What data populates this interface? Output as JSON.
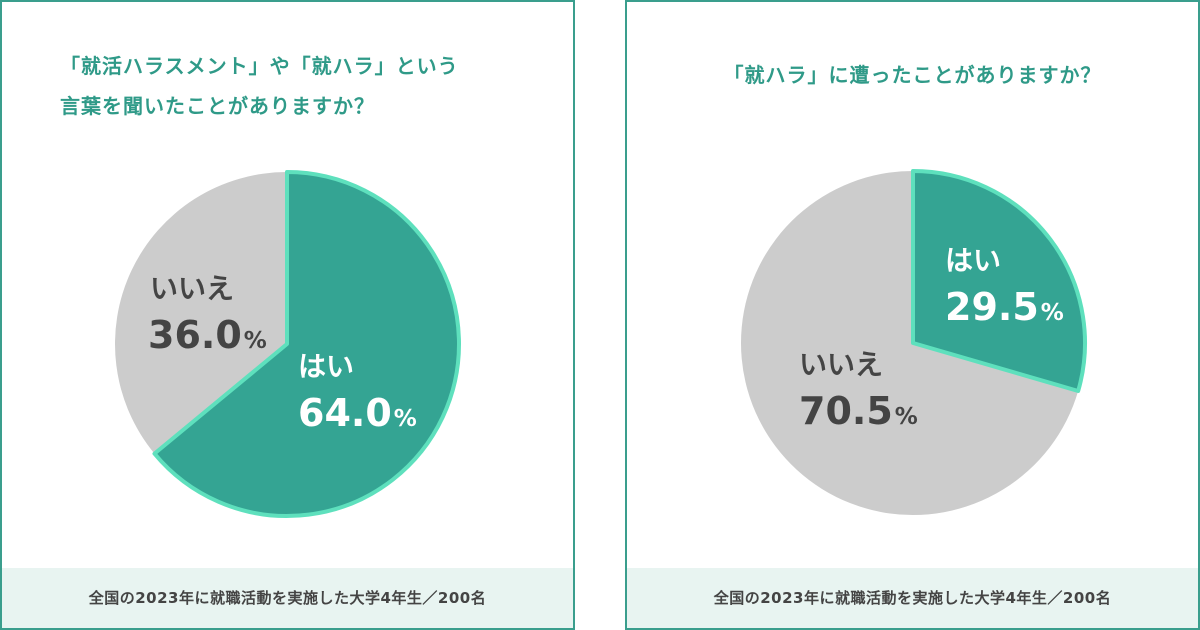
{
  "colors": {
    "accent": "#34a493",
    "accent_border": "#5ee0bd",
    "gray": "#cccccc",
    "title": "#2f9a88",
    "gray_text": "#444444",
    "footer_bg": "#e8f4f1"
  },
  "chart_data": [
    {
      "type": "pie",
      "title": "「就活ハラスメント」や「就ハラ」という言葉を聞いたことがありますか？",
      "title_lines": [
        "「就活ハラスメント」や「就ハラ」という",
        "言葉を聞いたことがありますか？"
      ],
      "slices": [
        {
          "label": "はい",
          "value": 64.0,
          "display": "64.0",
          "unit": "%",
          "color": "#34a493"
        },
        {
          "label": "いいえ",
          "value": 36.0,
          "display": "36.0",
          "unit": "%",
          "color": "#cccccc"
        }
      ],
      "footnote": "全国の2023年に就職活動を実施した大学4年生／200名"
    },
    {
      "type": "pie",
      "title": "「就ハラ」に遭ったことがありますか？",
      "title_lines": [
        "「就ハラ」に遭ったことがありますか？"
      ],
      "slices": [
        {
          "label": "はい",
          "value": 29.5,
          "display": "29.5",
          "unit": "%",
          "color": "#34a493"
        },
        {
          "label": "いいえ",
          "value": 70.5,
          "display": "70.5",
          "unit": "%",
          "color": "#cccccc"
        }
      ],
      "footnote": "全国の2023年に就職活動を実施した大学4年生／200名"
    }
  ]
}
